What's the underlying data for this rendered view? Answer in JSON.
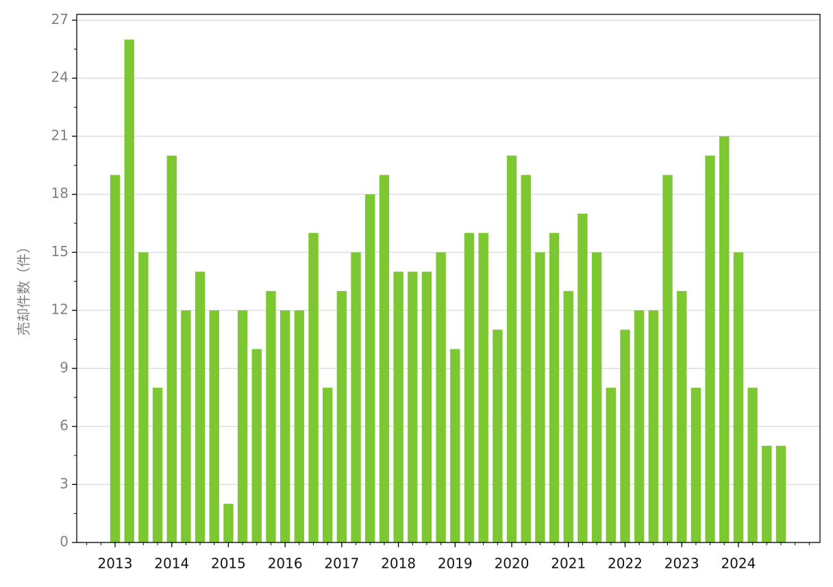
{
  "chart_data": {
    "type": "bar",
    "y_label": "売却件数（件）",
    "categories": [
      "2013",
      null,
      null,
      null,
      "2014",
      null,
      null,
      null,
      "2015",
      null,
      null,
      null,
      "2016",
      null,
      null,
      null,
      "2017",
      null,
      null,
      null,
      "2018",
      null,
      null,
      null,
      "2019",
      null,
      null,
      null,
      "2020",
      null,
      null,
      null,
      "2021",
      null,
      null,
      null,
      "2022",
      null,
      null,
      null,
      "2023",
      null,
      null,
      null,
      "2024",
      null,
      null,
      null
    ],
    "values": [
      19,
      26,
      15,
      8,
      20,
      12,
      14,
      12,
      2,
      12,
      10,
      13,
      12,
      12,
      16,
      8,
      13,
      15,
      18,
      19,
      14,
      14,
      14,
      15,
      10,
      16,
      16,
      11,
      20,
      19,
      15,
      16,
      13,
      17,
      15,
      8,
      11,
      12,
      12,
      19,
      13,
      8,
      20,
      21,
      15,
      8,
      5,
      5
    ],
    "color": "#7dc832",
    "ylim": [
      0,
      27.3
    ],
    "yticks": [
      0,
      3,
      6,
      9,
      12,
      15,
      18,
      21,
      24,
      27
    ],
    "grid": true
  }
}
